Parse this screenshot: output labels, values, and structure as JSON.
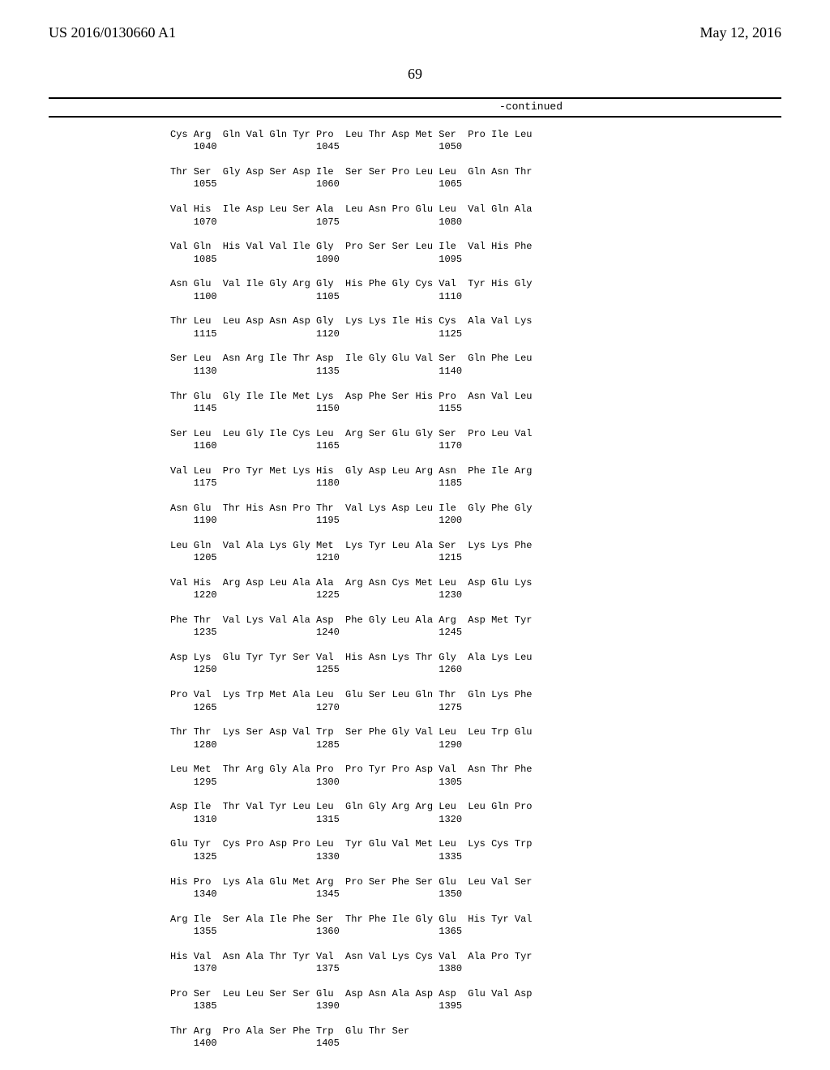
{
  "header": {
    "left": "US 2016/0130660 A1",
    "right": "May 12, 2016"
  },
  "page_number": "69",
  "continued_label": "-continued",
  "sequence_text": "Cys Arg  Gln Val Gln Tyr Pro  Leu Thr Asp Met Ser  Pro Ile Leu\n    1040                 1045                 1050\n\nThr Ser  Gly Asp Ser Asp Ile  Ser Ser Pro Leu Leu  Gln Asn Thr\n    1055                 1060                 1065\n\nVal His  Ile Asp Leu Ser Ala  Leu Asn Pro Glu Leu  Val Gln Ala\n    1070                 1075                 1080\n\nVal Gln  His Val Val Ile Gly  Pro Ser Ser Leu Ile  Val His Phe\n    1085                 1090                 1095\n\nAsn Glu  Val Ile Gly Arg Gly  His Phe Gly Cys Val  Tyr His Gly\n    1100                 1105                 1110\n\nThr Leu  Leu Asp Asn Asp Gly  Lys Lys Ile His Cys  Ala Val Lys\n    1115                 1120                 1125\n\nSer Leu  Asn Arg Ile Thr Asp  Ile Gly Glu Val Ser  Gln Phe Leu\n    1130                 1135                 1140\n\nThr Glu  Gly Ile Ile Met Lys  Asp Phe Ser His Pro  Asn Val Leu\n    1145                 1150                 1155\n\nSer Leu  Leu Gly Ile Cys Leu  Arg Ser Glu Gly Ser  Pro Leu Val\n    1160                 1165                 1170\n\nVal Leu  Pro Tyr Met Lys His  Gly Asp Leu Arg Asn  Phe Ile Arg\n    1175                 1180                 1185\n\nAsn Glu  Thr His Asn Pro Thr  Val Lys Asp Leu Ile  Gly Phe Gly\n    1190                 1195                 1200\n\nLeu Gln  Val Ala Lys Gly Met  Lys Tyr Leu Ala Ser  Lys Lys Phe\n    1205                 1210                 1215\n\nVal His  Arg Asp Leu Ala Ala  Arg Asn Cys Met Leu  Asp Glu Lys\n    1220                 1225                 1230\n\nPhe Thr  Val Lys Val Ala Asp  Phe Gly Leu Ala Arg  Asp Met Tyr\n    1235                 1240                 1245\n\nAsp Lys  Glu Tyr Tyr Ser Val  His Asn Lys Thr Gly  Ala Lys Leu\n    1250                 1255                 1260\n\nPro Val  Lys Trp Met Ala Leu  Glu Ser Leu Gln Thr  Gln Lys Phe\n    1265                 1270                 1275\n\nThr Thr  Lys Ser Asp Val Trp  Ser Phe Gly Val Leu  Leu Trp Glu\n    1280                 1285                 1290\n\nLeu Met  Thr Arg Gly Ala Pro  Pro Tyr Pro Asp Val  Asn Thr Phe\n    1295                 1300                 1305\n\nAsp Ile  Thr Val Tyr Leu Leu  Gln Gly Arg Arg Leu  Leu Gln Pro\n    1310                 1315                 1320\n\nGlu Tyr  Cys Pro Asp Pro Leu  Tyr Glu Val Met Leu  Lys Cys Trp\n    1325                 1330                 1335\n\nHis Pro  Lys Ala Glu Met Arg  Pro Ser Phe Ser Glu  Leu Val Ser\n    1340                 1345                 1350\n\nArg Ile  Ser Ala Ile Phe Ser  Thr Phe Ile Gly Glu  His Tyr Val\n    1355                 1360                 1365\n\nHis Val  Asn Ala Thr Tyr Val  Asn Val Lys Cys Val  Ala Pro Tyr\n    1370                 1375                 1380\n\nPro Ser  Leu Leu Ser Ser Glu  Asp Asn Ala Asp Asp  Glu Val Asp\n    1385                 1390                 1395\n\nThr Arg  Pro Ala Ser Phe Trp  Glu Thr Ser\n    1400                 1405"
}
